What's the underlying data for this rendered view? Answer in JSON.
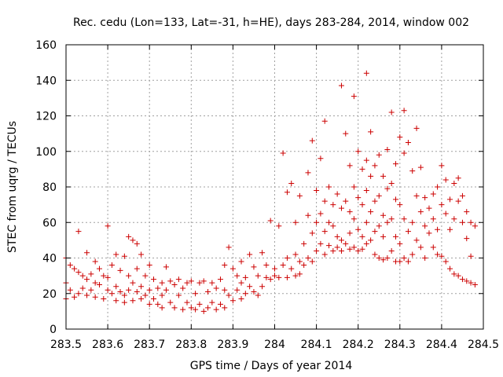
{
  "chart_data": {
    "type": "scatter",
    "title": "Rec. cedu (Lon=133, Lat=-31, h=HE), days 283-284, 2014, window 002",
    "xlabel": "GPS time / Days of year 2014",
    "ylabel": "STEC from uqrg / TECUs",
    "xlim": [
      283.5,
      284.5
    ],
    "ylim": [
      0,
      160
    ],
    "xticks": [
      283.5,
      283.6,
      283.7,
      283.8,
      283.9,
      284.0,
      284.1,
      284.2,
      284.3,
      284.4,
      284.5
    ],
    "xtick_labels": [
      "283.5",
      "283.6",
      "283.7",
      "283.8",
      "283.9",
      "284",
      "284.1",
      "284.2",
      "284.3",
      "284.4",
      "284.5"
    ],
    "yticks": [
      0,
      20,
      40,
      60,
      80,
      100,
      120,
      140,
      160
    ],
    "ytick_labels": [
      "0",
      "20",
      "40",
      "60",
      "80",
      "100",
      "120",
      "140",
      "160"
    ],
    "grid": true,
    "marker": "+",
    "color": "#cc0000",
    "points": [
      [
        283.5,
        40
      ],
      [
        283.5,
        26
      ],
      [
        283.5,
        17
      ],
      [
        283.51,
        36
      ],
      [
        283.51,
        22
      ],
      [
        283.52,
        34
      ],
      [
        283.52,
        18
      ],
      [
        283.53,
        55
      ],
      [
        283.53,
        32
      ],
      [
        283.53,
        20
      ],
      [
        283.54,
        30
      ],
      [
        283.54,
        23
      ],
      [
        283.55,
        43
      ],
      [
        283.55,
        28
      ],
      [
        283.55,
        19
      ],
      [
        283.56,
        31
      ],
      [
        283.56,
        22
      ],
      [
        283.57,
        38
      ],
      [
        283.57,
        26
      ],
      [
        283.57,
        18
      ],
      [
        283.58,
        34
      ],
      [
        283.58,
        25
      ],
      [
        283.59,
        30
      ],
      [
        283.59,
        17
      ],
      [
        283.6,
        58
      ],
      [
        283.6,
        29
      ],
      [
        283.6,
        22
      ],
      [
        283.61,
        36
      ],
      [
        283.61,
        20
      ],
      [
        283.62,
        42
      ],
      [
        283.62,
        24
      ],
      [
        283.62,
        16
      ],
      [
        283.63,
        33
      ],
      [
        283.63,
        21
      ],
      [
        283.64,
        41
      ],
      [
        283.64,
        19
      ],
      [
        283.64,
        15
      ],
      [
        283.65,
        52
      ],
      [
        283.65,
        30
      ],
      [
        283.65,
        22
      ],
      [
        283.66,
        50
      ],
      [
        283.66,
        26
      ],
      [
        283.66,
        16
      ],
      [
        283.67,
        48
      ],
      [
        283.67,
        34
      ],
      [
        283.67,
        21
      ],
      [
        283.68,
        42
      ],
      [
        283.68,
        24
      ],
      [
        283.68,
        17
      ],
      [
        283.69,
        30
      ],
      [
        283.69,
        19
      ],
      [
        283.7,
        36
      ],
      [
        283.7,
        22
      ],
      [
        283.7,
        14
      ],
      [
        283.71,
        28
      ],
      [
        283.71,
        17
      ],
      [
        283.72,
        23
      ],
      [
        283.72,
        14
      ],
      [
        283.73,
        26
      ],
      [
        283.73,
        19
      ],
      [
        283.73,
        12
      ],
      [
        283.74,
        35
      ],
      [
        283.74,
        22
      ],
      [
        283.75,
        27
      ],
      [
        283.75,
        15
      ],
      [
        283.76,
        25
      ],
      [
        283.76,
        12
      ],
      [
        283.77,
        28
      ],
      [
        283.77,
        19
      ],
      [
        283.78,
        23
      ],
      [
        283.78,
        11
      ],
      [
        283.79,
        26
      ],
      [
        283.79,
        15
      ],
      [
        283.8,
        27
      ],
      [
        283.8,
        12
      ],
      [
        283.81,
        20
      ],
      [
        283.81,
        11
      ],
      [
        283.82,
        26
      ],
      [
        283.82,
        14
      ],
      [
        283.83,
        27
      ],
      [
        283.83,
        10
      ],
      [
        283.84,
        21
      ],
      [
        283.84,
        12
      ],
      [
        283.85,
        26
      ],
      [
        283.85,
        15
      ],
      [
        283.86,
        23
      ],
      [
        283.86,
        11
      ],
      [
        283.87,
        28
      ],
      [
        283.87,
        14
      ],
      [
        283.88,
        36
      ],
      [
        283.88,
        22
      ],
      [
        283.88,
        12
      ],
      [
        283.89,
        46
      ],
      [
        283.89,
        19
      ],
      [
        283.9,
        34
      ],
      [
        283.9,
        16
      ],
      [
        283.91,
        30
      ],
      [
        283.91,
        22
      ],
      [
        283.92,
        38
      ],
      [
        283.92,
        26
      ],
      [
        283.92,
        17
      ],
      [
        283.93,
        29
      ],
      [
        283.93,
        20
      ],
      [
        283.94,
        42
      ],
      [
        283.94,
        24
      ],
      [
        283.95,
        35
      ],
      [
        283.95,
        21
      ],
      [
        283.96,
        30
      ],
      [
        283.96,
        19
      ],
      [
        283.97,
        43
      ],
      [
        283.97,
        24
      ],
      [
        283.98,
        36
      ],
      [
        283.98,
        29
      ],
      [
        283.99,
        61
      ],
      [
        283.99,
        28
      ],
      [
        284.0,
        34
      ],
      [
        284.0,
        30
      ],
      [
        284.01,
        58
      ],
      [
        284.01,
        29
      ],
      [
        284.02,
        99
      ],
      [
        284.02,
        36
      ],
      [
        284.03,
        77
      ],
      [
        284.03,
        40
      ],
      [
        284.03,
        29
      ],
      [
        284.04,
        82
      ],
      [
        284.04,
        34
      ],
      [
        284.05,
        60
      ],
      [
        284.05,
        42
      ],
      [
        284.05,
        30
      ],
      [
        284.06,
        75
      ],
      [
        284.06,
        38
      ],
      [
        284.06,
        31
      ],
      [
        284.07,
        48
      ],
      [
        284.07,
        36
      ],
      [
        284.08,
        88
      ],
      [
        284.08,
        64
      ],
      [
        284.08,
        40
      ],
      [
        284.09,
        106
      ],
      [
        284.09,
        54
      ],
      [
        284.09,
        38
      ],
      [
        284.1,
        78
      ],
      [
        284.1,
        60
      ],
      [
        284.1,
        44
      ],
      [
        284.11,
        96
      ],
      [
        284.11,
        65
      ],
      [
        284.11,
        48
      ],
      [
        284.12,
        117
      ],
      [
        284.12,
        72
      ],
      [
        284.12,
        55
      ],
      [
        284.12,
        42
      ],
      [
        284.13,
        80
      ],
      [
        284.13,
        60
      ],
      [
        284.13,
        47
      ],
      [
        284.14,
        70
      ],
      [
        284.14,
        58
      ],
      [
        284.14,
        44
      ],
      [
        284.15,
        76
      ],
      [
        284.15,
        52
      ],
      [
        284.15,
        46
      ],
      [
        284.16,
        137
      ],
      [
        284.16,
        68
      ],
      [
        284.16,
        50
      ],
      [
        284.16,
        44
      ],
      [
        284.17,
        110
      ],
      [
        284.17,
        72
      ],
      [
        284.17,
        48
      ],
      [
        284.18,
        92
      ],
      [
        284.18,
        66
      ],
      [
        284.18,
        54
      ],
      [
        284.18,
        45
      ],
      [
        284.19,
        131
      ],
      [
        284.19,
        80
      ],
      [
        284.19,
        62
      ],
      [
        284.19,
        46
      ],
      [
        284.2,
        100
      ],
      [
        284.2,
        74
      ],
      [
        284.2,
        56
      ],
      [
        284.2,
        44
      ],
      [
        284.21,
        90
      ],
      [
        284.21,
        70
      ],
      [
        284.21,
        52
      ],
      [
        284.21,
        45
      ],
      [
        284.22,
        144
      ],
      [
        284.22,
        95
      ],
      [
        284.22,
        78
      ],
      [
        284.22,
        60
      ],
      [
        284.22,
        48
      ],
      [
        284.23,
        111
      ],
      [
        284.23,
        86
      ],
      [
        284.23,
        66
      ],
      [
        284.23,
        50
      ],
      [
        284.24,
        92
      ],
      [
        284.24,
        72
      ],
      [
        284.24,
        55
      ],
      [
        284.24,
        42
      ],
      [
        284.25,
        98
      ],
      [
        284.25,
        75
      ],
      [
        284.25,
        58
      ],
      [
        284.25,
        40
      ],
      [
        284.26,
        86
      ],
      [
        284.26,
        64
      ],
      [
        284.26,
        52
      ],
      [
        284.26,
        39
      ],
      [
        284.27,
        101
      ],
      [
        284.27,
        79
      ],
      [
        284.27,
        60
      ],
      [
        284.27,
        40
      ],
      [
        284.28,
        122
      ],
      [
        284.28,
        82
      ],
      [
        284.28,
        62
      ],
      [
        284.28,
        44
      ],
      [
        284.29,
        93
      ],
      [
        284.29,
        73
      ],
      [
        284.29,
        52
      ],
      [
        284.29,
        38
      ],
      [
        284.3,
        108
      ],
      [
        284.3,
        70
      ],
      [
        284.3,
        48
      ],
      [
        284.3,
        38
      ],
      [
        284.31,
        123
      ],
      [
        284.31,
        99
      ],
      [
        284.31,
        62
      ],
      [
        284.31,
        40
      ],
      [
        284.32,
        105
      ],
      [
        284.32,
        55
      ],
      [
        284.32,
        38
      ],
      [
        284.33,
        89
      ],
      [
        284.33,
        60
      ],
      [
        284.33,
        42
      ],
      [
        284.34,
        113
      ],
      [
        284.34,
        75
      ],
      [
        284.34,
        50
      ],
      [
        284.35,
        91
      ],
      [
        284.35,
        66
      ],
      [
        284.35,
        46
      ],
      [
        284.36,
        74
      ],
      [
        284.36,
        58
      ],
      [
        284.36,
        40
      ],
      [
        284.37,
        68
      ],
      [
        284.37,
        54
      ],
      [
        284.38,
        76
      ],
      [
        284.38,
        62
      ],
      [
        284.38,
        46
      ],
      [
        284.39,
        80
      ],
      [
        284.39,
        56
      ],
      [
        284.39,
        42
      ],
      [
        284.4,
        92
      ],
      [
        284.4,
        70
      ],
      [
        284.4,
        41
      ],
      [
        284.41,
        84
      ],
      [
        284.41,
        65
      ],
      [
        284.41,
        38
      ],
      [
        284.42,
        73
      ],
      [
        284.42,
        56
      ],
      [
        284.42,
        34
      ],
      [
        284.43,
        82
      ],
      [
        284.43,
        62
      ],
      [
        284.43,
        31
      ],
      [
        284.44,
        85
      ],
      [
        284.44,
        72
      ],
      [
        284.44,
        30
      ],
      [
        284.45,
        75
      ],
      [
        284.45,
        60
      ],
      [
        284.45,
        28
      ],
      [
        284.46,
        66
      ],
      [
        284.46,
        51
      ],
      [
        284.46,
        27
      ],
      [
        284.47,
        60
      ],
      [
        284.47,
        41
      ],
      [
        284.47,
        26
      ],
      [
        284.48,
        58
      ],
      [
        284.48,
        25
      ]
    ]
  }
}
